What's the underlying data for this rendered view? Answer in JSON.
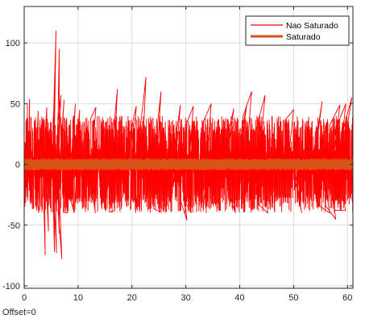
{
  "footer": {
    "offset_text": "Offset=0"
  },
  "chart_data": {
    "type": "line",
    "title": "",
    "xlabel": "",
    "ylabel": "",
    "xlim": [
      0,
      61
    ],
    "ylim": [
      -102,
      130
    ],
    "xticks": [
      0,
      10,
      20,
      30,
      40,
      50,
      60
    ],
    "xtick_labels": [
      "0",
      "10",
      "20",
      "30",
      "40",
      "50",
      "60"
    ],
    "yticks": [
      -100,
      -50,
      0,
      50,
      100
    ],
    "ytick_labels": [
      "-100",
      "-50",
      "0",
      "50",
      "100"
    ],
    "grid": true,
    "legend_position": "top-right",
    "series": [
      {
        "name": "Nao Saturado",
        "color": "#ff0000",
        "envelope_upper": 40,
        "envelope_lower": -33,
        "peaks": [
          {
            "x": 0.6,
            "y": 50
          },
          {
            "x": 1.0,
            "y": 54
          },
          {
            "x": 2.6,
            "y": 44
          },
          {
            "x": 4.2,
            "y": 47
          },
          {
            "x": 5.6,
            "y": 64
          },
          {
            "x": 5.9,
            "y": 110
          },
          {
            "x": 6.5,
            "y": 95
          },
          {
            "x": 6.8,
            "y": 57
          },
          {
            "x": 7.4,
            "y": 53
          },
          {
            "x": 9.5,
            "y": 50
          },
          {
            "x": 10.3,
            "y": 45
          },
          {
            "x": 13.3,
            "y": 47
          },
          {
            "x": 17.3,
            "y": 62
          },
          {
            "x": 20.8,
            "y": 48
          },
          {
            "x": 22.6,
            "y": 72
          },
          {
            "x": 25.4,
            "y": 60
          },
          {
            "x": 29.0,
            "y": 49
          },
          {
            "x": 31.4,
            "y": 48
          },
          {
            "x": 34.7,
            "y": 50
          },
          {
            "x": 38.9,
            "y": 46
          },
          {
            "x": 41.3,
            "y": 49
          },
          {
            "x": 42.2,
            "y": 60
          },
          {
            "x": 44.7,
            "y": 57
          },
          {
            "x": 50.0,
            "y": 45
          },
          {
            "x": 55.3,
            "y": 52
          },
          {
            "x": 58.6,
            "y": 49
          },
          {
            "x": 59.7,
            "y": 50
          },
          {
            "x": 60.8,
            "y": 55
          }
        ],
        "troughs": [
          {
            "x": 0.5,
            "y": -27
          },
          {
            "x": 2.7,
            "y": -40
          },
          {
            "x": 3.4,
            "y": -37
          },
          {
            "x": 3.9,
            "y": -75
          },
          {
            "x": 4.5,
            "y": -55
          },
          {
            "x": 5.6,
            "y": -72
          },
          {
            "x": 6.0,
            "y": -73
          },
          {
            "x": 6.5,
            "y": -57
          },
          {
            "x": 7.0,
            "y": -78
          },
          {
            "x": 8.0,
            "y": -40
          },
          {
            "x": 9.3,
            "y": -40
          },
          {
            "x": 13.2,
            "y": -40
          },
          {
            "x": 16.8,
            "y": -38
          },
          {
            "x": 21.0,
            "y": -38
          },
          {
            "x": 25.2,
            "y": -39
          },
          {
            "x": 30.2,
            "y": -46
          },
          {
            "x": 31.0,
            "y": -40
          },
          {
            "x": 39.2,
            "y": -40
          },
          {
            "x": 45.2,
            "y": -40
          },
          {
            "x": 51.5,
            "y": -40
          },
          {
            "x": 56.7,
            "y": -40
          },
          {
            "x": 57.8,
            "y": -45
          },
          {
            "x": 59.6,
            "y": -38
          }
        ]
      },
      {
        "name": "Saturado",
        "color": "#d95319",
        "envelope_upper": 5,
        "envelope_lower": -5
      }
    ]
  }
}
